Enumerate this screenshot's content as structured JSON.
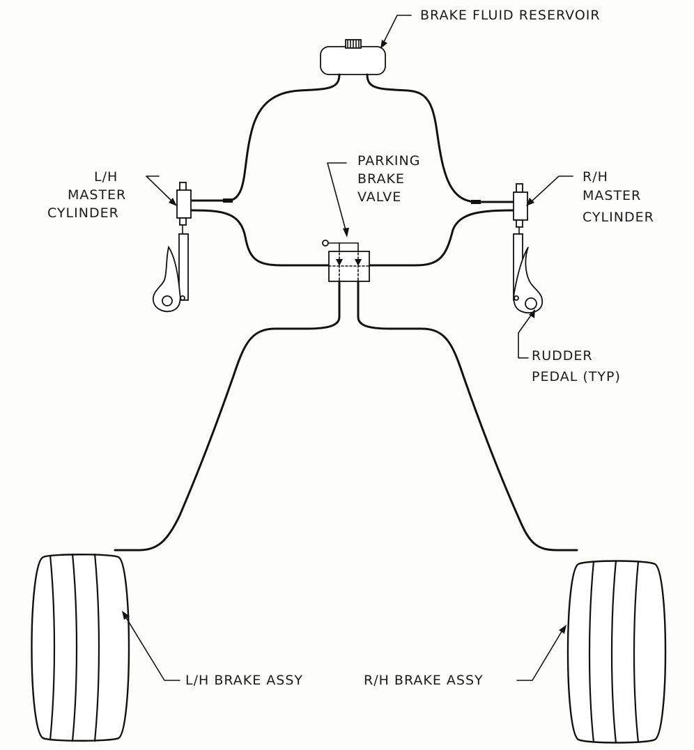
{
  "labels": {
    "reservoir": "BRAKE FLUID RESERVOIR",
    "lh_master": [
      "L/H",
      "MASTER",
      "CYLINDER"
    ],
    "rh_master": [
      "R/H",
      "MASTER",
      "CYLINDER"
    ],
    "parking_valve": [
      "PARKING",
      "BRAKE",
      "VALVE"
    ],
    "rudder_pedal": [
      "RUDDER",
      "PEDAL (TYP)"
    ],
    "lh_brake": "L/H BRAKE ASSY",
    "rh_brake": "R/H BRAKE ASSY"
  }
}
